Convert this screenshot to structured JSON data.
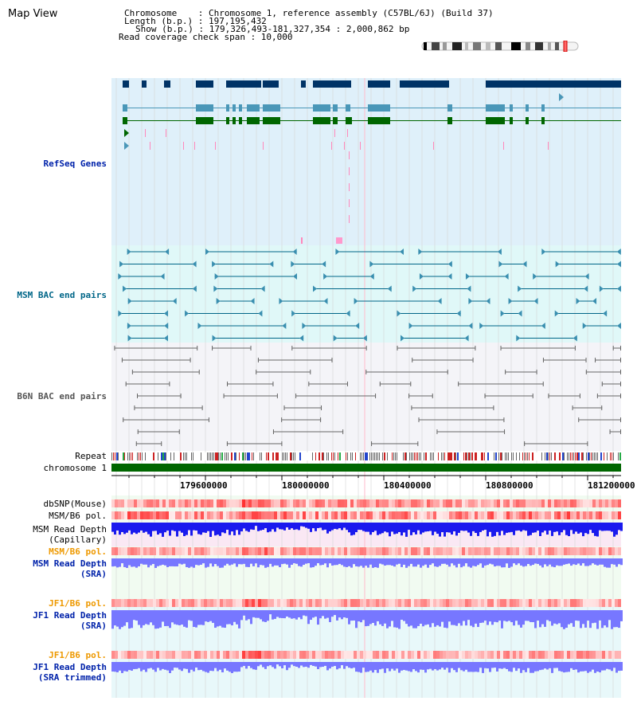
{
  "view_title": "Map View",
  "header": {
    "chromosome_line": "Chromosome    : Chromosome 1, reference assembly (C57BL/6J) (Build 37)",
    "length_line": "Length (b.p.) : 197,195,432",
    "show_line": "Show (b.p.) : 179,326,493-181,327,354 : 2,000,862 bp",
    "coverage_line": "Read coverage check span : 10,000"
  },
  "tracks": {
    "refseq": "RefSeq Genes",
    "msm_bac": "MSM BAC end pairs",
    "b6n_bac": "B6N BAC end pairs",
    "repeat": "Repeat",
    "chromosome": "chromosome 1",
    "dbsnp": "dbSNP(Mouse)",
    "msm_b6_pol_1": "MSM/B6 pol.",
    "msm_depth_cap_1": "MSM Read Depth",
    "msm_depth_cap_2": "(Capillary)",
    "msm_b6_pol_2": "MSM/B6 pol.",
    "msm_depth_sra_1": "MSM Read Depth",
    "msm_depth_sra_2": "(SRA)",
    "jf1_b6_pol_1": "JF1/B6 pol.",
    "jf1_depth_sra_1": "JF1 Read Depth",
    "jf1_depth_sra_2": "(SRA)",
    "jf1_b6_pol_2": "JF1/B6 pol.",
    "jf1_depth_trim_1": "JF1 Read Depth",
    "jf1_depth_trim_2": "(SRA trimmed)"
  },
  "axis": {
    "ticks": [
      "179600000",
      "180000000",
      "180400000",
      "180800000",
      "181200000"
    ]
  },
  "colors": {
    "refseq_bg": "#dff0fa",
    "msm_bg": "#e0f8f8",
    "b6n_bg": "#f4f4f8",
    "gene_navy": "#003366",
    "gene_teal": "#4a97b8",
    "gene_green": "#006600",
    "msm_bac": "#006688",
    "b6n_bac": "#666666",
    "snp_red": "#ee2222",
    "depth_blue": "#1a1aee",
    "depth_light": "#7777ff",
    "label_blue": "#0022aa",
    "label_orange": "#ee9900",
    "chrom_green": "#006600"
  }
}
